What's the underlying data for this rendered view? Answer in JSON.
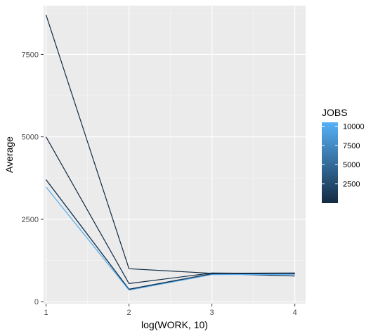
{
  "chart_data": {
    "type": "line",
    "title": "",
    "xlabel": "log(WORK, 10)",
    "ylabel": "Average",
    "xlim": [
      0.97,
      4.13
    ],
    "ylim": [
      -60,
      8980
    ],
    "x_ticks": [
      1,
      2,
      3,
      4
    ],
    "y_ticks": [
      0,
      2500,
      5000,
      7500
    ],
    "grid": true,
    "legend": {
      "title": "JOBS",
      "position": "right",
      "ticks": [
        2500,
        5000,
        7500,
        10000
      ],
      "range": [
        1,
        10500
      ],
      "colors": {
        "low": "#132b43",
        "high": "#56b1f7"
      }
    },
    "series": [
      {
        "jobs": 1,
        "x": [
          1,
          2,
          3,
          4
        ],
        "y": [
          8700,
          1000,
          860,
          870
        ]
      },
      {
        "jobs": 10,
        "x": [
          1,
          2,
          3,
          4
        ],
        "y": [
          5000,
          550,
          870,
          850
        ]
      },
      {
        "jobs": 100,
        "x": [
          1,
          2,
          3,
          4
        ],
        "y": [
          3700,
          370,
          830,
          860
        ]
      },
      {
        "jobs": 1000,
        "x": [
          1,
          2,
          3,
          4
        ],
        "y": [
          3700,
          380,
          850,
          780
        ]
      },
      {
        "jobs": 10000,
        "x": [
          1,
          2,
          3,
          4
        ],
        "y": [
          3480,
          350,
          820,
          830
        ]
      }
    ]
  }
}
